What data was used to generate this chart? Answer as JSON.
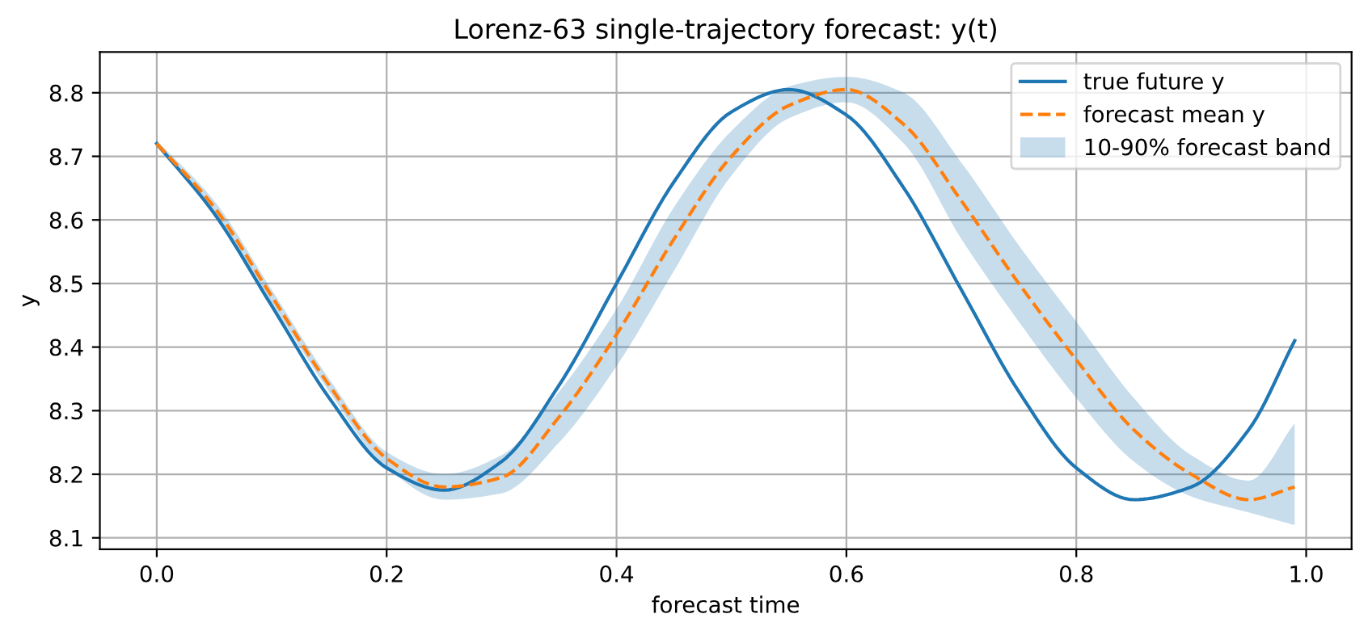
{
  "chart_data": {
    "type": "line",
    "title": "Lorenz-63 single-trajectory forecast: y(t)",
    "xlabel": "forecast time",
    "ylabel": "y",
    "x": [
      0,
      0.05,
      0.1,
      0.15,
      0.2,
      0.25,
      0.3,
      0.35,
      0.4,
      0.45,
      0.5,
      0.55,
      0.6,
      0.65,
      0.7,
      0.75,
      0.8,
      0.85,
      0.9,
      0.95,
      0.99
    ],
    "series": [
      {
        "name": "true future y",
        "color": "#1f77b4",
        "line_style": "solid",
        "values": [
          8.72,
          8.61,
          8.465,
          8.32,
          8.21,
          8.175,
          8.22,
          8.34,
          8.5,
          8.66,
          8.77,
          8.805,
          8.765,
          8.65,
          8.49,
          8.33,
          8.21,
          8.16,
          8.18,
          8.27,
          8.41
        ]
      },
      {
        "name": "forecast mean y",
        "color": "#ff7f0e",
        "line_style": "dashed",
        "values": [
          8.72,
          8.62,
          8.48,
          8.34,
          8.225,
          8.18,
          8.195,
          8.29,
          8.42,
          8.57,
          8.7,
          8.78,
          8.805,
          8.75,
          8.63,
          8.5,
          8.38,
          8.27,
          8.2,
          8.16,
          8.18
        ],
        "lower": [
          8.715,
          8.61,
          8.47,
          8.33,
          8.21,
          8.16,
          8.17,
          8.25,
          8.37,
          8.52,
          8.67,
          8.76,
          8.785,
          8.72,
          8.57,
          8.44,
          8.32,
          8.22,
          8.165,
          8.14,
          8.12
        ],
        "upper": [
          8.725,
          8.63,
          8.49,
          8.35,
          8.235,
          8.2,
          8.23,
          8.33,
          8.46,
          8.62,
          8.74,
          8.81,
          8.825,
          8.8,
          8.69,
          8.56,
          8.44,
          8.32,
          8.23,
          8.19,
          8.28
        ]
      }
    ],
    "xlim": [
      -0.0495,
      1.0395
    ],
    "ylim": [
      8.082,
      8.864
    ],
    "xticks": [
      {
        "value": 0,
        "label": "0.0"
      },
      0.2,
      0.4,
      0.6,
      0.8,
      {
        "value": 1,
        "label": "1.0"
      }
    ],
    "yticks": [
      8.1,
      8.2,
      8.3,
      8.4,
      8.5,
      8.6,
      8.7,
      8.8
    ],
    "annotations": [
      "10-90% forecast band"
    ],
    "grid": true,
    "legend": "top right"
  }
}
